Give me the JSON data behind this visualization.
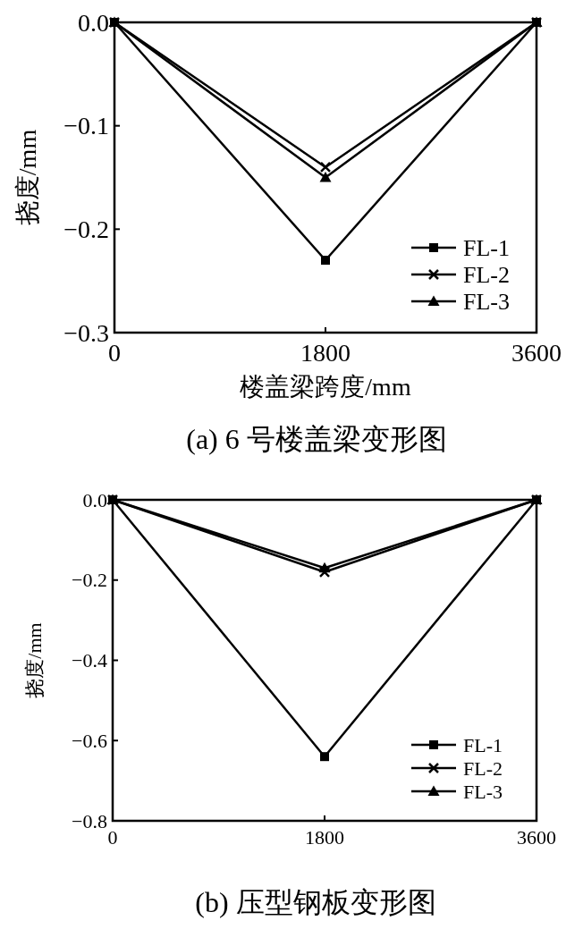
{
  "chart_data": [
    {
      "type": "line",
      "title": "(a) 6 号楼盖梁变形图",
      "xlabel": "楼盖梁跨度/mm",
      "ylabel": "挠度/mm",
      "x": [
        0,
        1800,
        3600
      ],
      "xlim": [
        0,
        3600
      ],
      "xticks": [
        0,
        1800,
        3600
      ],
      "ylim": [
        -0.3,
        0.0
      ],
      "yticks": [
        {
          "value": -0.3,
          "label": "−0.3"
        },
        {
          "value": -0.2,
          "label": "−0.2"
        },
        {
          "value": -0.1,
          "label": "−0.1"
        },
        {
          "value": 0,
          "label": "0.0"
        }
      ],
      "legend": "bottom right",
      "grid": false,
      "series": [
        {
          "name": "FL-1",
          "color": "#000000",
          "marker": "square",
          "values": [
            0,
            -0.23,
            0
          ]
        },
        {
          "name": "FL-2",
          "color": "#000000",
          "marker": "cross",
          "values": [
            0,
            -0.14,
            0
          ]
        },
        {
          "name": "FL-3",
          "color": "#000000",
          "marker": "triangle",
          "values": [
            0,
            -0.15,
            0
          ]
        }
      ]
    },
    {
      "type": "line",
      "title": "(b) 压型钢板变形图",
      "ylabel": "挠度/mm",
      "x": [
        0,
        1800,
        3600
      ],
      "xlim": [
        0,
        3600
      ],
      "xticks": [
        0,
        1800,
        3600
      ],
      "ylim": [
        -0.8,
        0.0
      ],
      "yticks": [
        {
          "value": -0.8,
          "label": "−0.8"
        },
        {
          "value": -0.6,
          "label": "−0.6"
        },
        {
          "value": -0.4,
          "label": "−0.4"
        },
        {
          "value": -0.2,
          "label": "−0.2"
        },
        {
          "value": 0,
          "label": "0.0"
        }
      ],
      "legend": "bottom right",
      "grid": false,
      "series": [
        {
          "name": "FL-1",
          "color": "#000000",
          "marker": "square",
          "values": [
            0,
            -0.64,
            0
          ]
        },
        {
          "name": "FL-2",
          "color": "#000000",
          "marker": "cross",
          "values": [
            0,
            -0.18,
            0
          ]
        },
        {
          "name": "FL-3",
          "color": "#000000",
          "marker": "triangle",
          "values": [
            0,
            -0.17,
            0
          ]
        }
      ]
    }
  ]
}
